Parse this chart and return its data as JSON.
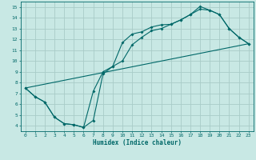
{
  "xlabel": "Humidex (Indice chaleur)",
  "xlim": [
    -0.5,
    23.5
  ],
  "ylim": [
    3.5,
    15.5
  ],
  "xticks": [
    0,
    1,
    2,
    3,
    4,
    5,
    6,
    7,
    8,
    9,
    10,
    11,
    12,
    13,
    14,
    15,
    16,
    17,
    18,
    19,
    20,
    21,
    22,
    23
  ],
  "yticks": [
    4,
    5,
    6,
    7,
    8,
    9,
    10,
    11,
    12,
    13,
    14,
    15
  ],
  "bg_color": "#c8e8e4",
  "grid_color": "#a8ccc8",
  "line_color": "#006868",
  "line1_x": [
    0,
    1,
    2,
    3,
    4,
    5,
    6,
    7,
    8,
    9,
    10,
    11,
    12,
    13,
    14,
    15,
    16,
    17,
    18,
    19,
    20,
    21,
    22,
    23
  ],
  "line1_y": [
    7.5,
    6.7,
    6.2,
    4.8,
    4.2,
    4.1,
    3.85,
    7.2,
    9.0,
    9.5,
    11.7,
    12.5,
    12.7,
    13.15,
    13.35,
    13.4,
    13.8,
    14.3,
    15.05,
    14.7,
    14.3,
    13.0,
    12.2,
    11.6
  ],
  "line2_x": [
    0,
    1,
    2,
    3,
    4,
    5,
    6,
    7,
    8,
    9,
    10,
    11,
    12,
    13,
    14,
    15,
    16,
    17,
    18,
    19,
    20,
    21,
    22,
    23
  ],
  "line2_y": [
    7.5,
    6.7,
    6.2,
    4.8,
    4.2,
    4.1,
    3.85,
    4.5,
    8.8,
    9.5,
    10.0,
    11.5,
    12.2,
    12.8,
    13.0,
    13.4,
    13.8,
    14.3,
    14.8,
    14.7,
    14.3,
    13.0,
    12.2,
    11.6
  ],
  "line3_x": [
    0,
    23
  ],
  "line3_y": [
    7.5,
    11.6
  ]
}
